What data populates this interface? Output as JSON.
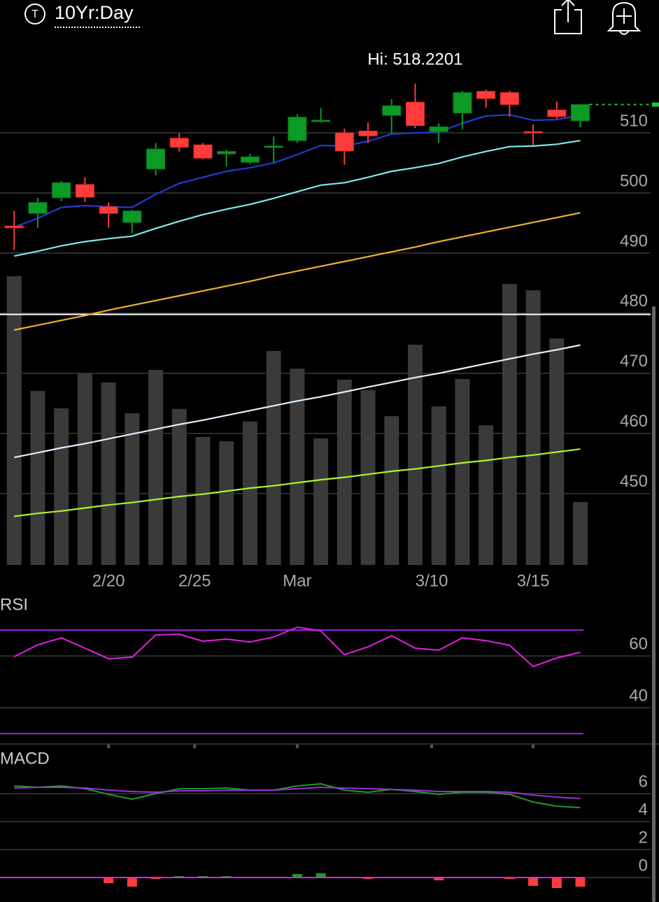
{
  "header": {
    "badge": "T",
    "title": "10Yr:Day"
  },
  "chart_data": [
    {
      "type": "candlestick",
      "x": [
        0,
        1,
        2,
        3,
        4,
        5,
        6,
        7,
        8,
        9,
        10,
        11,
        12,
        13,
        14,
        15,
        16,
        17,
        18,
        19,
        20,
        21,
        22,
        23,
        24
      ],
      "xlim": [
        -0.6,
        25.2
      ],
      "xticks": [
        {
          "value": 4,
          "label": "2/20"
        },
        {
          "value": 7.65,
          "label": "2/25"
        },
        {
          "value": 12,
          "label": "Mar"
        },
        {
          "value": 17.7,
          "label": "3/10"
        },
        {
          "value": 22,
          "label": "3/15"
        }
      ],
      "ylim": [
        438,
        525
      ],
      "yticks": [
        450,
        460,
        470,
        480,
        490,
        500,
        510
      ],
      "grid": true,
      "open": [
        494.5,
        496.6,
        499.2,
        501.4,
        497.7,
        495.1,
        504.0,
        509.1,
        508.0,
        506.5,
        505.1,
        507.6,
        508.7,
        511.9,
        510.0,
        510.3,
        512.9,
        515.1,
        510.2,
        513.3,
        516.9,
        516.7,
        510.2,
        513.8,
        512.0
      ],
      "high": [
        497.0,
        499.2,
        502.0,
        502.6,
        498.4,
        497.2,
        508.3,
        509.9,
        508.3,
        507.2,
        506.5,
        509.4,
        513.1,
        514.1,
        510.7,
        511.7,
        515.6,
        518.2,
        511.6,
        517.0,
        517.2,
        517.0,
        511.4,
        515.2,
        514.7
      ],
      "low": [
        490.5,
        494.2,
        498.6,
        498.5,
        494.2,
        493.3,
        502.9,
        506.9,
        505.6,
        504.4,
        504.8,
        505.0,
        508.3,
        511.7,
        504.7,
        508.3,
        509.9,
        510.8,
        508.3,
        510.6,
        514.2,
        512.7,
        507.9,
        512.3,
        510.9
      ],
      "close": [
        494.2,
        498.4,
        501.7,
        499.3,
        496.6,
        497.0,
        507.3,
        507.6,
        505.8,
        506.9,
        506.0,
        507.8,
        512.6,
        512.1,
        507.0,
        509.5,
        514.5,
        511.2,
        511.0,
        516.7,
        515.7,
        514.7,
        510.0,
        512.7,
        514.7
      ],
      "up_color": "#0c9a24",
      "down_color": "#ff3b3b",
      "annotation": "Hi: 518.2201",
      "reference_line": 479.8,
      "last_price_color": "#1fc23a",
      "overlays": [
        {
          "color": "#1c3fd0",
          "values": [
            494.3,
            495.8,
            497.6,
            497.9,
            497.7,
            497.6,
            499.8,
            501.6,
            502.6,
            503.6,
            504.2,
            505.0,
            506.4,
            507.9,
            507.8,
            508.6,
            509.8,
            510.0,
            510.1,
            511.6,
            512.8,
            513.0,
            512.1,
            512.2,
            512.9
          ]
        },
        {
          "color": "#7fe8e8",
          "values": [
            489.5,
            490.3,
            491.2,
            491.9,
            492.4,
            492.8,
            494.1,
            495.3,
            496.4,
            497.3,
            498.1,
            499.1,
            500.2,
            501.3,
            501.7,
            502.6,
            503.6,
            504.2,
            504.9,
            506.0,
            506.9,
            507.7,
            507.8,
            508.1,
            508.7
          ]
        },
        {
          "color": "#f0b030",
          "values": [
            477.2,
            478.0,
            478.8,
            479.6,
            480.5,
            481.3,
            482.1,
            482.9,
            483.7,
            484.5,
            485.3,
            486.2,
            487.0,
            487.8,
            488.6,
            489.4,
            490.2,
            491.0,
            491.9,
            492.7,
            493.5,
            494.3,
            495.1,
            495.9,
            496.7
          ]
        },
        {
          "color": "#e0f0ff",
          "values": [
            456.0,
            456.8,
            457.6,
            458.3,
            459.1,
            459.9,
            460.7,
            461.5,
            462.2,
            463.0,
            463.8,
            464.6,
            465.4,
            466.1,
            466.9,
            467.7,
            468.5,
            469.3,
            470.0,
            470.8,
            471.6,
            472.4,
            473.2,
            473.9,
            474.7
          ]
        },
        {
          "color": "#b0f030",
          "values": [
            446.2,
            446.7,
            447.1,
            447.6,
            448.1,
            448.5,
            449.0,
            449.5,
            449.9,
            450.4,
            450.9,
            451.3,
            451.8,
            452.3,
            452.7,
            453.2,
            453.7,
            454.1,
            454.6,
            455.1,
            455.5,
            456.0,
            456.4,
            456.9,
            457.4
          ]
        }
      ],
      "volume": [
        91.8,
        55.3,
        49.8,
        60.9,
        58.0,
        48.2,
        62.0,
        49.6,
        40.7,
        39.3,
        45.6,
        68.0,
        62.4,
        40.2,
        58.9,
        55.6,
        47.3,
        70.0,
        50.4,
        59.1,
        44.4,
        89.3,
        87.3,
        72.0,
        20.0
      ],
      "volume_lim": [
        0,
        100
      ],
      "volume_color": "#3a3a3a"
    },
    {
      "type": "rsi",
      "label": "RSI",
      "series": [
        {
          "color": "#e020e0",
          "values": [
            59.7,
            64.3,
            67.0,
            63.0,
            58.9,
            59.5,
            68.1,
            68.4,
            65.7,
            66.5,
            65.4,
            67.3,
            71.1,
            69.7,
            60.5,
            63.5,
            67.8,
            63.0,
            62.2,
            67.0,
            65.9,
            64.1,
            55.9,
            59.2,
            61.4
          ]
        }
      ],
      "bands": [
        30,
        70
      ],
      "band_color": "#9a22e6",
      "ylim": [
        25.7,
        83.8
      ],
      "yticks": [
        40,
        60
      ],
      "grid": true
    },
    {
      "type": "macd",
      "label": "MACD",
      "series": [
        {
          "color": "#1f9a2a",
          "values": [
            6.55,
            6.45,
            6.55,
            6.35,
            5.95,
            5.6,
            6.0,
            6.35,
            6.35,
            6.4,
            6.25,
            6.25,
            6.55,
            6.7,
            6.25,
            6.1,
            6.3,
            6.15,
            5.95,
            6.1,
            6.1,
            5.95,
            5.4,
            5.1,
            5.0
          ]
        },
        {
          "color": "#9a30e0",
          "values": [
            6.4,
            6.45,
            6.45,
            6.4,
            6.25,
            6.15,
            6.1,
            6.2,
            6.2,
            6.25,
            6.25,
            6.25,
            6.35,
            6.45,
            6.4,
            6.35,
            6.3,
            6.25,
            6.15,
            6.15,
            6.15,
            6.1,
            5.9,
            5.75,
            5.65
          ]
        }
      ],
      "histogram": [
        0.05,
        0,
        0.05,
        0,
        -0.4,
        -0.65,
        -0.1,
        0.1,
        0.1,
        0.1,
        0,
        0,
        0.25,
        0.3,
        -0.05,
        -0.1,
        0,
        -0.05,
        -0.2,
        -0.05,
        0,
        -0.1,
        -0.6,
        -0.75,
        -0.65
      ],
      "hist_up_color": "#1f9a2a",
      "hist_down_color": "#ff3b3b",
      "zero_color": "#e020e0",
      "ylim": [
        -1.75,
        9.25
      ],
      "yticks": [
        0,
        2,
        4,
        6
      ],
      "grid": true
    }
  ]
}
